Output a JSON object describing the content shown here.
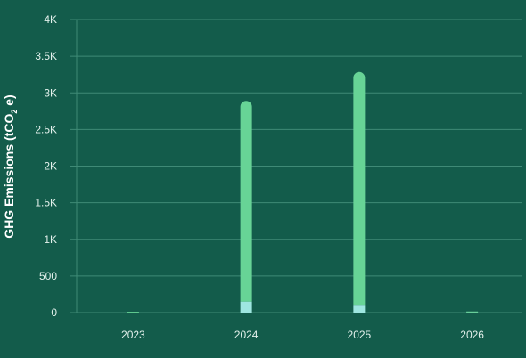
{
  "chart_data": {
    "type": "bar",
    "stacked": true,
    "categories": [
      "2023",
      "2024",
      "2025",
      "2026"
    ],
    "series": [
      {
        "values": [
          3,
          150,
          95,
          3
        ],
        "color": "#9ee6e0"
      },
      {
        "values": [
          8,
          2740,
          3190,
          12
        ],
        "color": "#67d496"
      }
    ],
    "ylabel": "GHG Emissions (tCO₂e)",
    "ylabel_parts": {
      "before": "GHG Emissions (tCO",
      "sub": "2",
      "after": " e)"
    },
    "ylim": [
      0,
      4000
    ],
    "y_ticks": [
      0,
      500,
      1000,
      1500,
      2000,
      2500,
      3000,
      3500,
      4000
    ],
    "y_tick_labels": [
      "0",
      "500",
      "1K",
      "1.5K",
      "2K",
      "2.5K",
      "3K",
      "3.5K",
      "4K"
    ],
    "grid": true,
    "background": "#135c4b",
    "grid_color": "#3f8a76"
  }
}
